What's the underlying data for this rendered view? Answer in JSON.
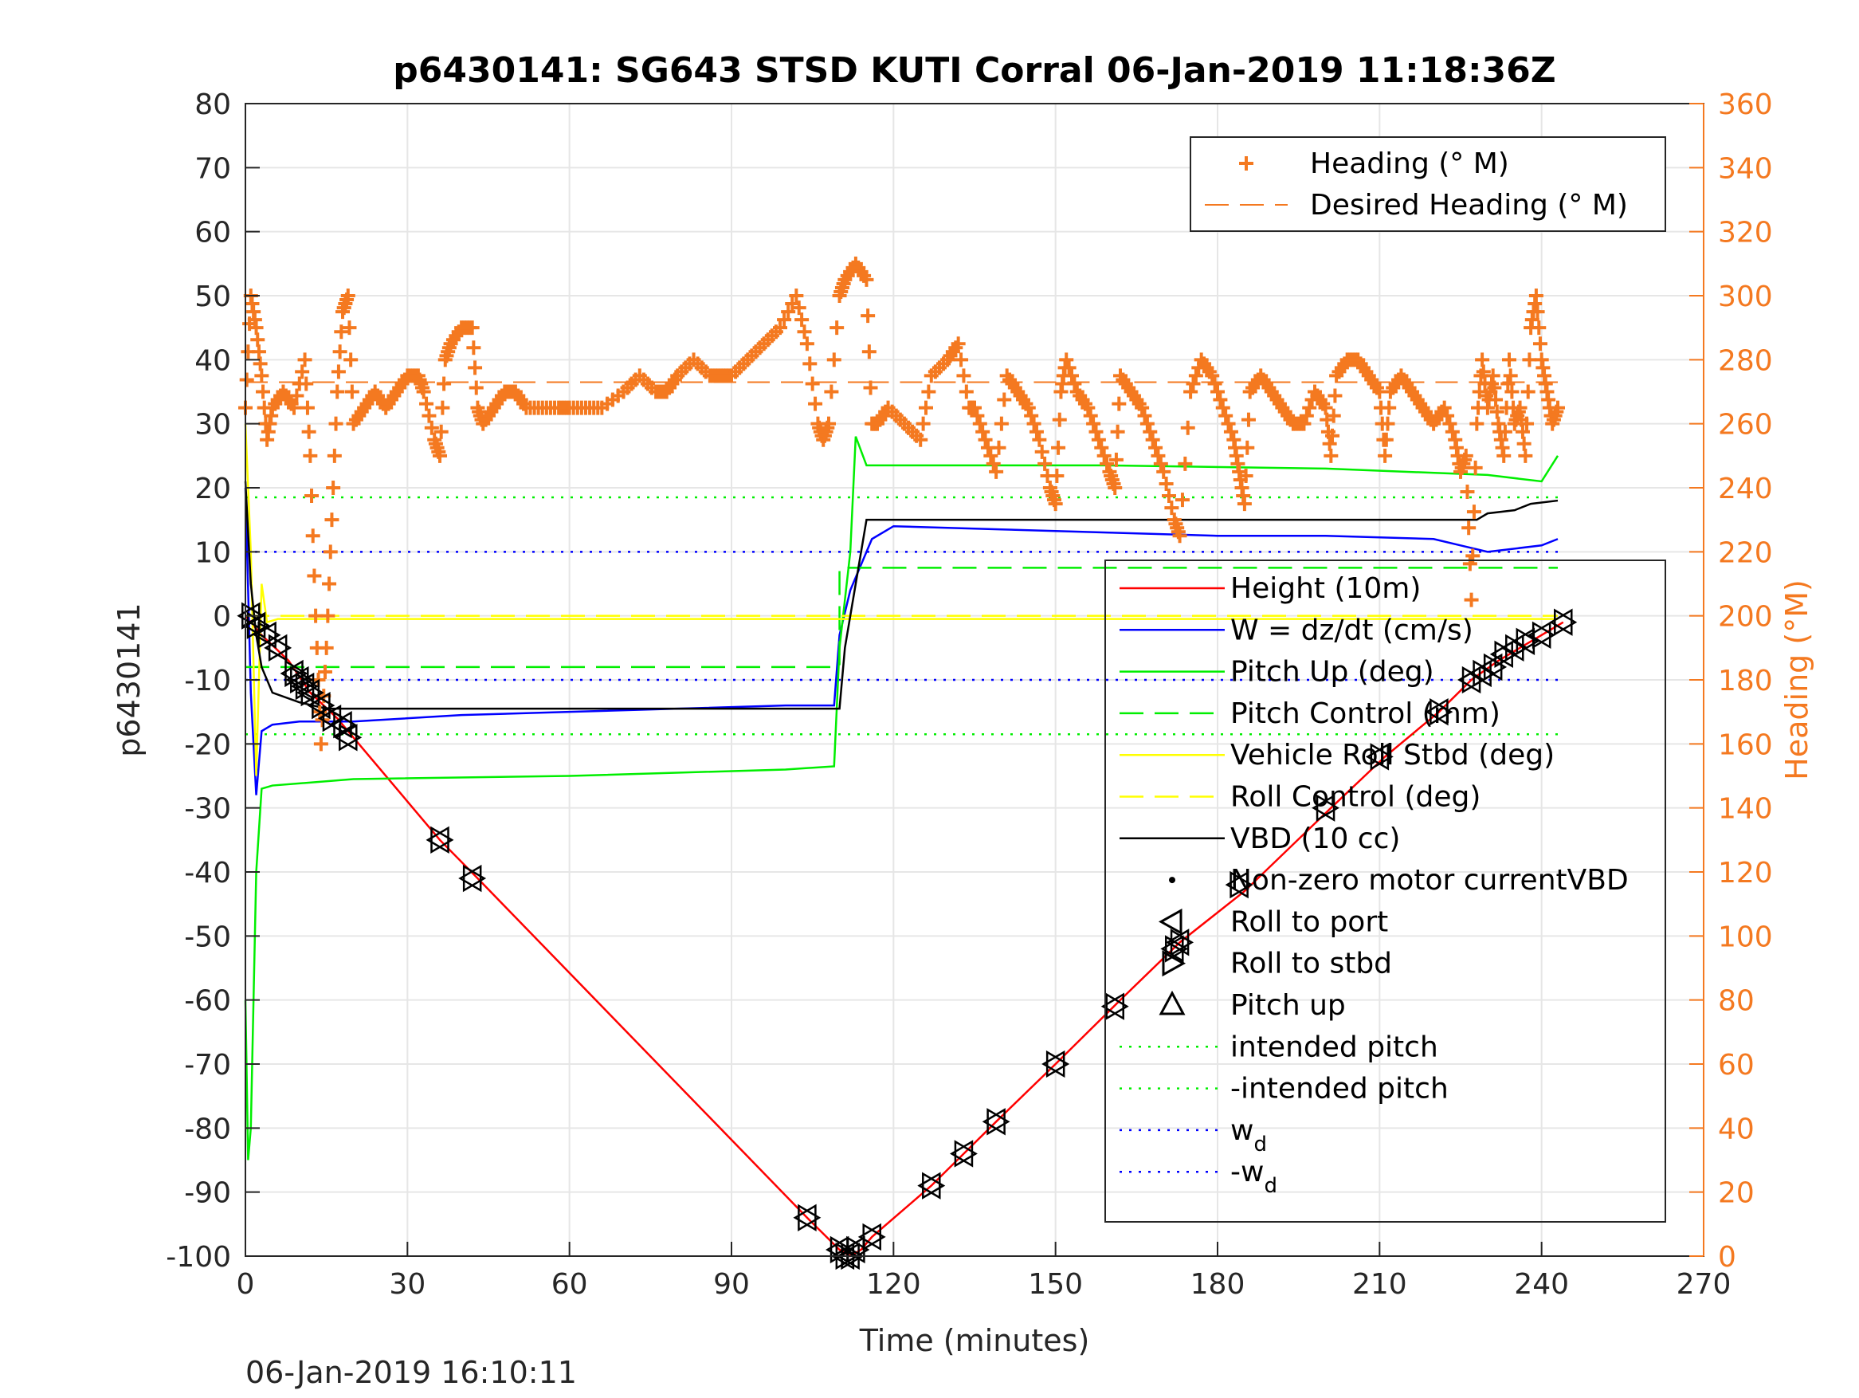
{
  "chart_data": {
    "type": "line",
    "title": "p6430141: SG643 STSD KUTI Corral 06-Jan-2019 11:18:36Z",
    "xlabel": "Time (minutes)",
    "ylabel_left": "p6430141",
    "ylabel_right": "Heading (°M)",
    "footer": "06-Jan-2019 16:10:11",
    "xlim": [
      0,
      270
    ],
    "ylim_left": [
      -100,
      80
    ],
    "ylim_right": [
      0,
      360
    ],
    "grid": true,
    "x_ticks": [
      "0",
      "30",
      "60",
      "90",
      "120",
      "150",
      "180",
      "210",
      "240",
      "270"
    ],
    "y_ticks_left": [
      "80",
      "70",
      "60",
      "50",
      "40",
      "30",
      "20",
      "10",
      "0",
      "-10",
      "-20",
      "-30",
      "-40",
      "-50",
      "-60",
      "-70",
      "-80",
      "-90",
      "-100"
    ],
    "y_ticks_right": [
      "360",
      "340",
      "320",
      "300",
      "280",
      "260",
      "240",
      "220",
      "200",
      "180",
      "160",
      "140",
      "120",
      "100",
      "80",
      "60",
      "40",
      "20",
      "0"
    ],
    "colors": {
      "heading": "#f47920",
      "height": "#ff0000",
      "w": "#0000ff",
      "pitch": "#00ee00",
      "roll": "#ffff00",
      "vbd": "#000000"
    },
    "legend_top": {
      "placement": "top-right",
      "entries": [
        {
          "label": "Heading (° M)",
          "style": "plus",
          "color": "#f47920"
        },
        {
          "label": "Desired Heading (° M)",
          "style": "dashed",
          "color": "#f47920"
        }
      ]
    },
    "legend_main": {
      "placement": "right",
      "entries": [
        {
          "label": "Height (10m)",
          "style": "solid",
          "color": "#ff0000"
        },
        {
          "label": "W = dz/dt (cm/s)",
          "style": "solid",
          "color": "#0000ff"
        },
        {
          "label": "Pitch Up (deg)",
          "style": "solid",
          "color": "#00ee00"
        },
        {
          "label": "Pitch Control (mm)",
          "style": "dashed",
          "color": "#00ee00"
        },
        {
          "label": "Vehicle Roll Stbd (deg)",
          "style": "solid",
          "color": "#ffff00"
        },
        {
          "label": "Roll Control (deg)",
          "style": "dashed",
          "color": "#ffff00"
        },
        {
          "label": "VBD (10 cc)",
          "style": "solid",
          "color": "#000000"
        },
        {
          "label": "Non-zero motor currentVBD",
          "style": "dot",
          "color": "#000000"
        },
        {
          "label": "Roll to port",
          "style": "tri-left",
          "color": "#000000"
        },
        {
          "label": "Roll to stbd",
          "style": "tri-right",
          "color": "#000000"
        },
        {
          "label": "Pitch up",
          "style": "tri-up",
          "color": "#000000"
        },
        {
          "label": "intended pitch",
          "style": "dotted",
          "color": "#00ee00"
        },
        {
          "label": "-intended pitch",
          "style": "dotted",
          "color": "#00ee00"
        },
        {
          "label": "w",
          "sub": "d",
          "style": "dotted",
          "color": "#0000ff"
        },
        {
          "label": "-w",
          "sub": "d",
          "style": "dotted",
          "color": "#0000ff"
        }
      ]
    },
    "reference_lines": [
      {
        "name": "intended pitch",
        "y": 18.5,
        "color": "#00ee00"
      },
      {
        "name": "-intended pitch",
        "y": -18.5,
        "color": "#00ee00"
      },
      {
        "name": "w_d",
        "y": 10,
        "color": "#0000ff"
      },
      {
        "name": "-w_d",
        "y": -10,
        "color": "#0000ff"
      }
    ],
    "desired_heading": [
      {
        "x": [
          0,
          115
        ],
        "y": 273
      },
      {
        "x": [
          115,
          243
        ],
        "y": 273
      }
    ],
    "series": [
      {
        "name": "Height (10m)",
        "axis": "left",
        "color": "#ff0000",
        "x": [
          0,
          3,
          8,
          12,
          17,
          20,
          36,
          43,
          104,
          110,
          112,
          114,
          116,
          127,
          133,
          139,
          150,
          162,
          173,
          185,
          201,
          211,
          221,
          227,
          232,
          236,
          240,
          244
        ],
        "y": [
          0,
          -3,
          -7,
          -12,
          -16,
          -19,
          -35,
          -41,
          -94,
          -99,
          -100,
          -99,
          -97,
          -89,
          -84,
          -79,
          -70,
          -60,
          -51,
          -43,
          -30,
          -22,
          -15,
          -10,
          -7,
          -5,
          -3,
          -1
        ]
      },
      {
        "name": "W = dz/dt (cm/s)",
        "axis": "left",
        "color": "#0000ff",
        "x": [
          0,
          1,
          2,
          3,
          5,
          10,
          20,
          40,
          60,
          80,
          100,
          109,
          110,
          112,
          114,
          116,
          120,
          140,
          160,
          180,
          200,
          220,
          225,
          230,
          240,
          243
        ],
        "y": [
          20,
          -12,
          -28,
          -18,
          -17,
          -16.5,
          -16.5,
          -15.5,
          -15,
          -14.5,
          -14,
          -14,
          -3,
          4,
          8,
          12,
          14,
          13.5,
          13,
          12.5,
          12.5,
          12,
          11,
          10,
          11,
          12
        ]
      },
      {
        "name": "Pitch Up (deg)",
        "axis": "left",
        "color": "#00ee00",
        "x": [
          0,
          0.5,
          1,
          2,
          3,
          5,
          20,
          60,
          100,
          109,
          110,
          112,
          113,
          115,
          120,
          160,
          200,
          230,
          240,
          243
        ],
        "y": [
          -60,
          -85,
          -80,
          -40,
          -27,
          -26.5,
          -25.5,
          -25,
          -24,
          -23.5,
          -5,
          10,
          28,
          23.5,
          23.5,
          23.5,
          23,
          22,
          21,
          25
        ]
      },
      {
        "name": "Pitch Control (mm)",
        "axis": "left",
        "color": "#00ee00",
        "dashed": true,
        "x": [
          0,
          110,
          110,
          243
        ],
        "y": [
          -8,
          -8,
          7.5,
          7.5
        ]
      },
      {
        "name": "Vehicle Roll Stbd (deg)",
        "axis": "left",
        "color": "#ffff00",
        "x": [
          0,
          1,
          2,
          3,
          4,
          6,
          10,
          20,
          40,
          60,
          100,
          110,
          115,
          150,
          200,
          240,
          243
        ],
        "y": [
          30,
          10,
          -25,
          5,
          -1,
          -0.5,
          -0.5,
          -0.5,
          -0.5,
          -0.5,
          -0.5,
          -0.5,
          -0.5,
          -0.5,
          -0.5,
          -0.5,
          -0.5
        ]
      },
      {
        "name": "Roll Control (deg)",
        "axis": "left",
        "color": "#ffff00",
        "dashed": true,
        "x": [
          0,
          243
        ],
        "y": [
          0,
          0
        ]
      },
      {
        "name": "VBD (10 cc)",
        "axis": "left",
        "color": "#000000",
        "x": [
          0,
          1,
          2,
          3,
          5,
          10,
          15,
          110,
          111,
          113,
          115,
          160,
          190,
          200,
          215,
          228,
          230,
          235,
          238,
          243
        ],
        "y": [
          21,
          5,
          -3,
          -8,
          -12,
          -13.5,
          -14.5,
          -14.5,
          -5,
          5,
          15,
          15,
          15,
          15,
          15,
          15,
          16,
          16.5,
          17.5,
          18
        ]
      },
      {
        "name": "Heading (° M)",
        "axis": "right",
        "color": "#f47920",
        "marker": "plus",
        "x": [
          0,
          1,
          2,
          3,
          4,
          5,
          7,
          9,
          11,
          12,
          13,
          14,
          15,
          16,
          17,
          18,
          19,
          20,
          22,
          24,
          26,
          28,
          30,
          32,
          33,
          35,
          36,
          37,
          38,
          40,
          42,
          43,
          44,
          46,
          48,
          50,
          52,
          55,
          58,
          60,
          63,
          66,
          70,
          73,
          76,
          78,
          80,
          83,
          86,
          88,
          90,
          93,
          96,
          99,
          102,
          104,
          106,
          107,
          108,
          110,
          111,
          113,
          115,
          116,
          117,
          119,
          122,
          125,
          127,
          130,
          132,
          134,
          135,
          137,
          139,
          141,
          143,
          145,
          147,
          149,
          150,
          151,
          152,
          154,
          156,
          158,
          160,
          161,
          162,
          164,
          166,
          168,
          170,
          172,
          173,
          175,
          177,
          179,
          181,
          183,
          184,
          185,
          186,
          188,
          190,
          192,
          194,
          196,
          198,
          200,
          201,
          202,
          204,
          206,
          208,
          210,
          211,
          212,
          214,
          216,
          218,
          220,
          222,
          224,
          225,
          226,
          227,
          228,
          229,
          230,
          231,
          232,
          233,
          234,
          235,
          236,
          237,
          238,
          239,
          240,
          241,
          242,
          243
        ],
        "y": [
          265,
          300,
          290,
          275,
          255,
          265,
          270,
          265,
          280,
          250,
          200,
          160,
          190,
          230,
          270,
          295,
          300,
          260,
          265,
          270,
          265,
          270,
          275,
          275,
          270,
          255,
          250,
          280,
          285,
          290,
          290,
          265,
          260,
          265,
          270,
          270,
          265,
          265,
          265,
          265,
          265,
          265,
          270,
          275,
          270,
          270,
          275,
          280,
          275,
          275,
          275,
          280,
          285,
          290,
          300,
          285,
          260,
          255,
          260,
          300,
          305,
          310,
          305,
          260,
          260,
          265,
          260,
          255,
          275,
          280,
          285,
          265,
          265,
          255,
          245,
          275,
          270,
          265,
          255,
          240,
          235,
          270,
          280,
          270,
          265,
          255,
          245,
          240,
          275,
          270,
          265,
          255,
          245,
          230,
          225,
          270,
          280,
          275,
          265,
          255,
          245,
          235,
          270,
          275,
          270,
          265,
          260,
          260,
          270,
          265,
          250,
          275,
          280,
          280,
          275,
          270,
          250,
          270,
          275,
          270,
          265,
          260,
          265,
          255,
          245,
          250,
          205,
          260,
          280,
          265,
          275,
          260,
          250,
          280,
          260,
          265,
          250,
          290,
          300,
          280,
          270,
          260,
          265
        ]
      }
    ],
    "markers": [
      {
        "x": 1,
        "y": 0
      },
      {
        "x": 2,
        "y": -1.5
      },
      {
        "x": 4,
        "y": -3
      },
      {
        "x": 6,
        "y": -5
      },
      {
        "x": 9,
        "y": -9
      },
      {
        "x": 10,
        "y": -10
      },
      {
        "x": 11,
        "y": -11
      },
      {
        "x": 12,
        "y": -12
      },
      {
        "x": 14,
        "y": -14
      },
      {
        "x": 16,
        "y": -16
      },
      {
        "x": 18,
        "y": -17
      },
      {
        "x": 19,
        "y": -19
      },
      {
        "x": 36,
        "y": -35
      },
      {
        "x": 42,
        "y": -41
      },
      {
        "x": 104,
        "y": -94
      },
      {
        "x": 110,
        "y": -99
      },
      {
        "x": 111,
        "y": -100
      },
      {
        "x": 112,
        "y": -100
      },
      {
        "x": 113,
        "y": -99
      },
      {
        "x": 116,
        "y": -97
      },
      {
        "x": 127,
        "y": -89
      },
      {
        "x": 133,
        "y": -84
      },
      {
        "x": 139,
        "y": -79
      },
      {
        "x": 150,
        "y": -70
      },
      {
        "x": 161,
        "y": -61
      },
      {
        "x": 172,
        "y": -52
      },
      {
        "x": 173,
        "y": -51
      },
      {
        "x": 184,
        "y": -42
      },
      {
        "x": 200,
        "y": -30
      },
      {
        "x": 210,
        "y": -22
      },
      {
        "x": 221,
        "y": -15
      },
      {
        "x": 227,
        "y": -10
      },
      {
        "x": 229,
        "y": -9
      },
      {
        "x": 231,
        "y": -8
      },
      {
        "x": 233,
        "y": -6
      },
      {
        "x": 235,
        "y": -5
      },
      {
        "x": 237,
        "y": -4
      },
      {
        "x": 240,
        "y": -3
      },
      {
        "x": 244,
        "y": -1
      }
    ]
  }
}
